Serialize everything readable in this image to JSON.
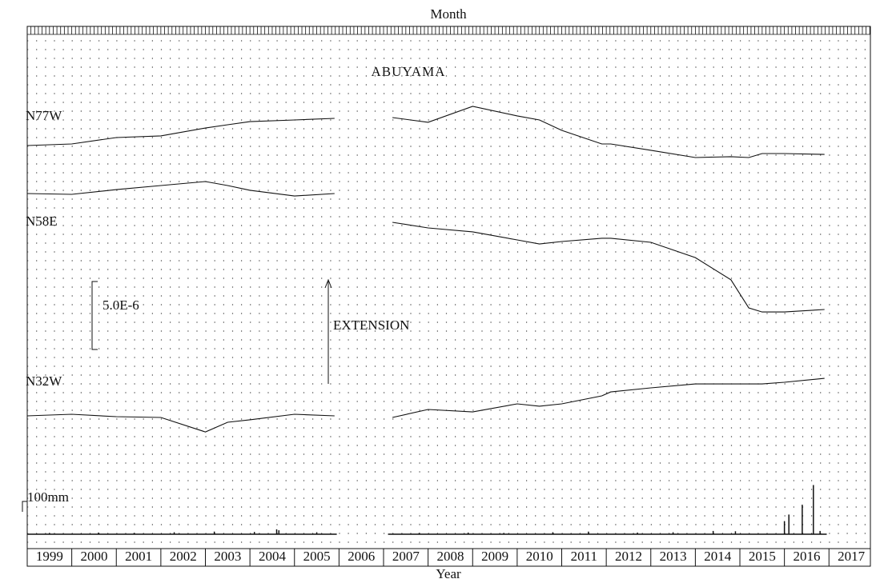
{
  "chart_data": {
    "type": "line",
    "title": "ABUYAMA",
    "top_axis_label": "Month",
    "xlabel": "Year",
    "xlim": [
      1999,
      2017.93
    ],
    "xticks": [
      1999,
      2000,
      2001,
      2002,
      2003,
      2004,
      2005,
      2006,
      2007,
      2008,
      2009,
      2010,
      2011,
      2012,
      2013,
      2014,
      2015,
      2016,
      2017
    ],
    "grid": true,
    "x": [
      1999,
      2000,
      2001,
      2002,
      2003,
      2003.5,
      2004,
      2005,
      2005.9,
      2006.5,
      2007.2,
      2008,
      2009,
      2010,
      2010.5,
      2011,
      2011.9,
      2012.1,
      2013,
      2014,
      2014.8,
      2015.2,
      2015.5,
      2016,
      2016.9
    ],
    "series": [
      {
        "name": "N77W",
        "color": "#111111",
        "values": [
          0,
          1.2e-07,
          5.9e-07,
          7.1e-07,
          1.29e-06,
          1.53e-06,
          1.76e-06,
          1.88e-06,
          2e-06,
          null,
          2.06e-06,
          1.71e-06,
          2.88e-06,
          2.18e-06,
          1.88e-06,
          1.12e-06,
          1.2e-07,
          1.2e-07,
          -3.5e-07,
          -8.8e-07,
          -8.2e-07,
          -8.8e-07,
          -5.9e-07,
          -5.9e-07,
          -6.5e-07
        ]
      },
      {
        "name": "N58E",
        "color": "#111111",
        "values": [
          0,
          -6e-08,
          2.9e-07,
          5.9e-07,
          8.8e-07,
          5.9e-07,
          2.4e-07,
          -1.8e-07,
          0,
          null,
          -2.12e-06,
          -2.53e-06,
          -2.82e-06,
          -3.41e-06,
          -3.71e-06,
          -3.53e-06,
          -3.29e-06,
          -3.29e-06,
          -3.59e-06,
          -4.71e-06,
          -6.35e-06,
          -8.41e-06,
          -8.71e-06,
          -8.71e-06,
          -8.53e-06
        ]
      },
      {
        "name": "N32W",
        "color": "#111111",
        "values": [
          0,
          1.2e-07,
          -6e-08,
          -1.2e-07,
          -1.18e-06,
          -4.7e-07,
          -2.9e-07,
          1.2e-07,
          0,
          null,
          -1.2e-07,
          4.7e-07,
          2.9e-07,
          8.8e-07,
          7.1e-07,
          8.8e-07,
          1.47e-06,
          1.76e-06,
          2.06e-06,
          2.35e-06,
          2.35e-06,
          2.35e-06,
          2.35e-06,
          2.47e-06,
          2.76e-06
        ]
      }
    ],
    "strain_scale": {
      "value": 5e-06,
      "label": "5.0E-6"
    },
    "annotation": "EXTENSION",
    "rainfall": {
      "scale": {
        "value": 100,
        "label": "100mm"
      },
      "x": [
        1999.5,
        2000.6,
        2001.4,
        2002.3,
        2003.2,
        2004.1,
        2004.6,
        2004.65,
        2005.5,
        2007.8,
        2008.9,
        2009.7,
        2010.8,
        2011.6,
        2012.7,
        2013.5,
        2014.4,
        2014.9,
        2016.0,
        2016.1,
        2016.4,
        2016.65,
        2016.8
      ],
      "values": [
        4,
        5,
        4,
        6,
        8,
        7,
        15,
        12,
        6,
        4,
        5,
        4,
        6,
        8,
        5,
        6,
        10,
        9,
        40,
        60,
        90,
        150,
        10
      ]
    }
  }
}
